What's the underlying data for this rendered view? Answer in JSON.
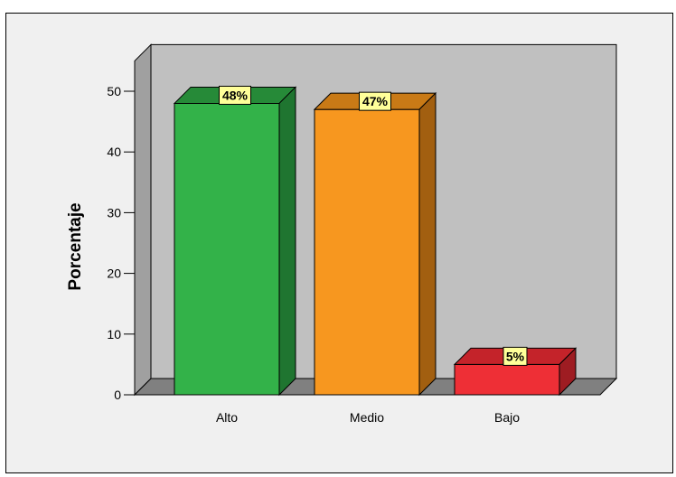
{
  "chart_data": {
    "type": "bar",
    "categories": [
      "Alto",
      "Medio",
      "Bajo"
    ],
    "values": [
      48,
      47,
      5
    ],
    "data_labels": [
      "48%",
      "47%",
      "5%"
    ],
    "ylabel": "Porcentaje",
    "xlabel": "",
    "ylim": [
      0,
      55
    ],
    "yticks": [
      0,
      10,
      20,
      30,
      40,
      50
    ],
    "grid": false,
    "legend": "none",
    "three_d": true,
    "colors": {
      "bars": [
        "#33b249",
        "#f7971f",
        "#ee2f36"
      ],
      "bars_side": [
        "#1f7530",
        "#a25f10",
        "#9e1c22"
      ],
      "bars_top": [
        "#268a38",
        "#c97a16",
        "#c4232a"
      ],
      "back_wall": "#c0c0c0",
      "side_wall": "#a0a0a0",
      "floor": "#808080",
      "label_box": "#ffff99",
      "background": "#f0f0f0"
    }
  }
}
